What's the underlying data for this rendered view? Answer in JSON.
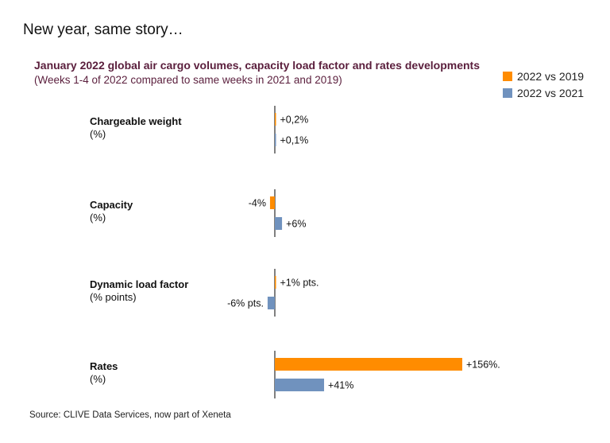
{
  "page": {
    "title": "New year, same story…"
  },
  "colors": {
    "series_2019": "#ff8c00",
    "series_2021": "#7092be",
    "axis": "#000000"
  },
  "chart_data": {
    "type": "bar",
    "orientation": "horizontal",
    "title": "January 2022 global air cargo volumes, capacity load factor and rates developments",
    "subtitle": "(Weeks 1-4 of 2022 compared to same weeks in 2021 and 2019)",
    "legend": {
      "position": "top-right",
      "entries": [
        "2022 vs 2019",
        "2022 vs 2021"
      ]
    },
    "grid": false,
    "categories": [
      {
        "name": "Chargeable weight",
        "unit": "(%)"
      },
      {
        "name": "Capacity",
        "unit": "(%)"
      },
      {
        "name": "Dynamic load factor",
        "unit": "(% points)"
      },
      {
        "name": "Rates",
        "unit": "(%)"
      }
    ],
    "series": [
      {
        "name": "2022 vs 2019",
        "values": [
          0.2,
          -4,
          1,
          156
        ],
        "labels": [
          "+0,2%",
          "-4%",
          "+1% pts.",
          "+156%."
        ]
      },
      {
        "name": "2022 vs 2021",
        "values": [
          0.1,
          6,
          -6,
          41
        ],
        "labels": [
          "+0,1%",
          "+6%",
          "-6% pts.",
          "+41%"
        ]
      }
    ],
    "source": "Source: CLIVE Data Services, now part of Xeneta"
  }
}
